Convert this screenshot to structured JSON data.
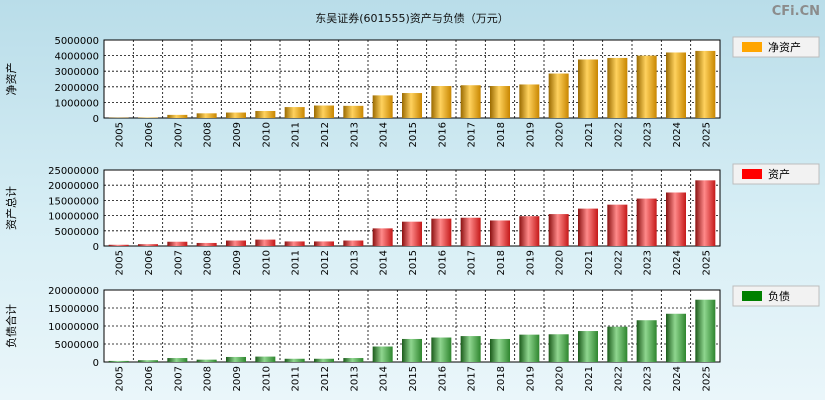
{
  "watermark": "CFi.CN",
  "chart_data": [
    {
      "type": "bar",
      "title": "东吴证券(601555)资产与负债（万元）",
      "ylabel": "净资产",
      "legend": "净资产",
      "color": "#ffa500",
      "categories": [
        "2005",
        "2006",
        "2007",
        "2008",
        "2009",
        "2010",
        "2011",
        "2012",
        "2013",
        "2014",
        "2015",
        "2016",
        "2017",
        "2018",
        "2019",
        "2020",
        "2021",
        "2022",
        "2023",
        "2024",
        "2025"
      ],
      "values": [
        20000,
        30000,
        200000,
        300000,
        350000,
        450000,
        700000,
        800000,
        780000,
        1450000,
        1600000,
        2050000,
        2100000,
        2050000,
        2150000,
        2850000,
        3750000,
        3850000,
        4000000,
        4200000,
        4300000
      ],
      "yticks": [
        0,
        1000000,
        2000000,
        3000000,
        4000000,
        5000000
      ],
      "ylim": [
        0,
        5000000
      ]
    },
    {
      "type": "bar",
      "ylabel": "资产总计",
      "legend": "资产",
      "color": "#ff0000",
      "categories": [
        "2005",
        "2006",
        "2007",
        "2008",
        "2009",
        "2010",
        "2011",
        "2012",
        "2013",
        "2014",
        "2015",
        "2016",
        "2017",
        "2018",
        "2019",
        "2020",
        "2021",
        "2022",
        "2023",
        "2024",
        "2025"
      ],
      "values": [
        400000,
        600000,
        1400000,
        1000000,
        1800000,
        2100000,
        1500000,
        1500000,
        1800000,
        5800000,
        8000000,
        9000000,
        9300000,
        8400000,
        9800000,
        10500000,
        12300000,
        13600000,
        15600000,
        17600000,
        21600000
      ],
      "yticks": [
        0,
        5000000,
        10000000,
        15000000,
        20000000,
        25000000
      ],
      "ylim": [
        0,
        25000000
      ]
    },
    {
      "type": "bar",
      "ylabel": "负债合计",
      "legend": "负债",
      "color": "#008000",
      "categories": [
        "2005",
        "2006",
        "2007",
        "2008",
        "2009",
        "2010",
        "2011",
        "2012",
        "2013",
        "2014",
        "2015",
        "2016",
        "2017",
        "2018",
        "2019",
        "2020",
        "2021",
        "2022",
        "2023",
        "2024",
        "2025"
      ],
      "values": [
        300000,
        500000,
        1100000,
        650000,
        1400000,
        1500000,
        900000,
        900000,
        1100000,
        4300000,
        6400000,
        6800000,
        7200000,
        6400000,
        7600000,
        7700000,
        8600000,
        9800000,
        11600000,
        13400000,
        17300000
      ],
      "yticks": [
        0,
        5000000,
        10000000,
        15000000,
        20000000
      ],
      "ylim": [
        0,
        20000000
      ]
    }
  ]
}
